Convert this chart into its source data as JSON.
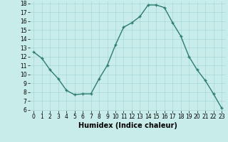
{
  "x": [
    0,
    1,
    2,
    3,
    4,
    5,
    6,
    7,
    8,
    9,
    10,
    11,
    12,
    13,
    14,
    15,
    16,
    17,
    18,
    19,
    20,
    21,
    22,
    23
  ],
  "y": [
    12.5,
    11.8,
    10.5,
    9.5,
    8.2,
    7.7,
    7.8,
    7.8,
    9.5,
    11.0,
    13.3,
    15.3,
    15.8,
    16.5,
    17.8,
    17.8,
    17.5,
    15.8,
    14.3,
    12.0,
    10.5,
    9.3,
    7.8,
    6.2
  ],
  "line_color": "#2e7d6e",
  "marker": "+",
  "marker_size": 3,
  "background_color": "#c8ecea",
  "grid_color": "#a8d8d4",
  "xlabel": "Humidex (Indice chaleur)",
  "xlabel_fontsize": 7,
  "ylim": [
    6,
    18
  ],
  "xlim": [
    -0.5,
    23.5
  ],
  "ytick_values": [
    6,
    7,
    8,
    9,
    10,
    11,
    12,
    13,
    14,
    15,
    16,
    17,
    18
  ],
  "xtick_values": [
    0,
    1,
    2,
    3,
    4,
    5,
    6,
    7,
    8,
    9,
    10,
    11,
    12,
    13,
    14,
    15,
    16,
    17,
    18,
    19,
    20,
    21,
    22,
    23
  ],
  "tick_fontsize": 5.5,
  "line_width": 1.0
}
